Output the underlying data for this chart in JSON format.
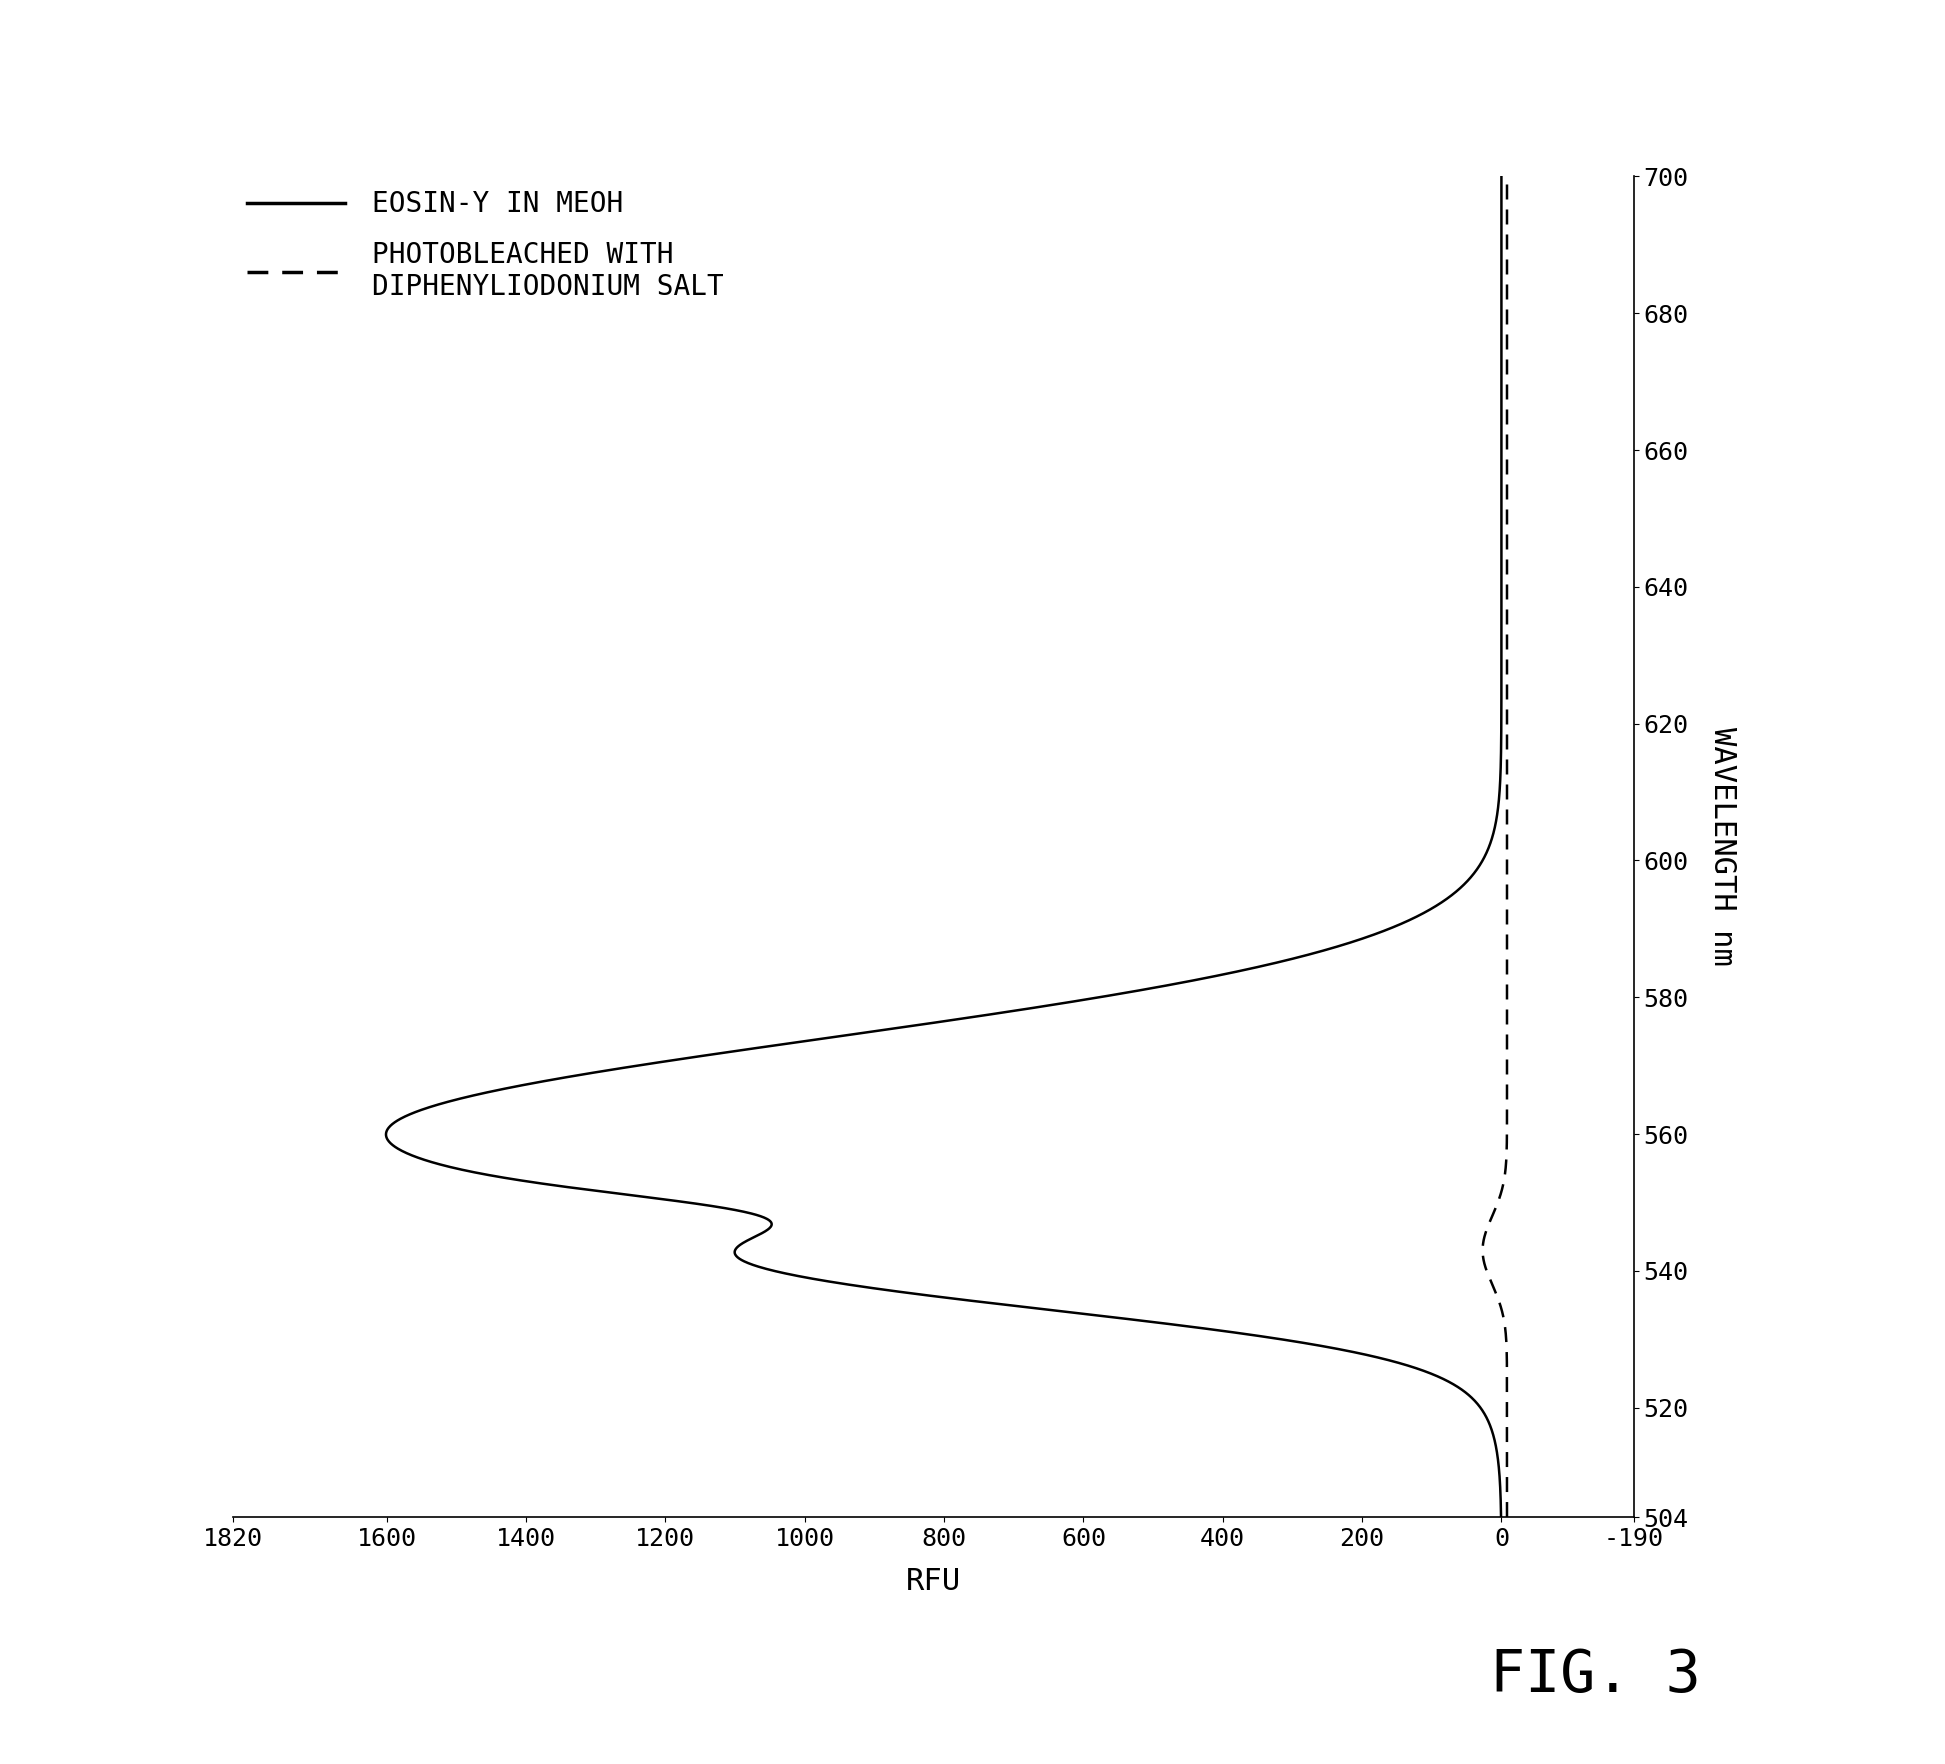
{
  "xlabel": "WAVELENGTH nm",
  "ylabel": "RFU",
  "rfu_lim": [
    1820,
    -190
  ],
  "wav_lim": [
    504,
    700
  ],
  "rfu_ticks": [
    1820,
    1600,
    1400,
    1200,
    1000,
    800,
    600,
    400,
    200,
    0,
    -190
  ],
  "wav_ticks": [
    504,
    520,
    540,
    560,
    580,
    600,
    620,
    640,
    660,
    680,
    700
  ],
  "legend_solid": "EOSIN-Y IN MEOH",
  "legend_dashed": "PHOTOBLEACHED WITH\nDIPHENYLIODONIUM SALT",
  "fig_label": "FIG. 3",
  "bg_color": "#ffffff",
  "line_color": "#000000",
  "main_peak_wav": 560,
  "main_peak_rfu": 1600,
  "main_peak_sigma": 14,
  "shoulder_wav": 539,
  "shoulder_rfu": 480,
  "shoulder_sigma": 6,
  "dip_wav": 548,
  "dashed_peak_wav": 543,
  "dashed_peak_rfu": 35,
  "dashed_peak_sigma": 5,
  "font_size_legend": 20,
  "font_size_axis_label": 22,
  "font_size_ticks": 18,
  "font_size_figlabel": 42
}
